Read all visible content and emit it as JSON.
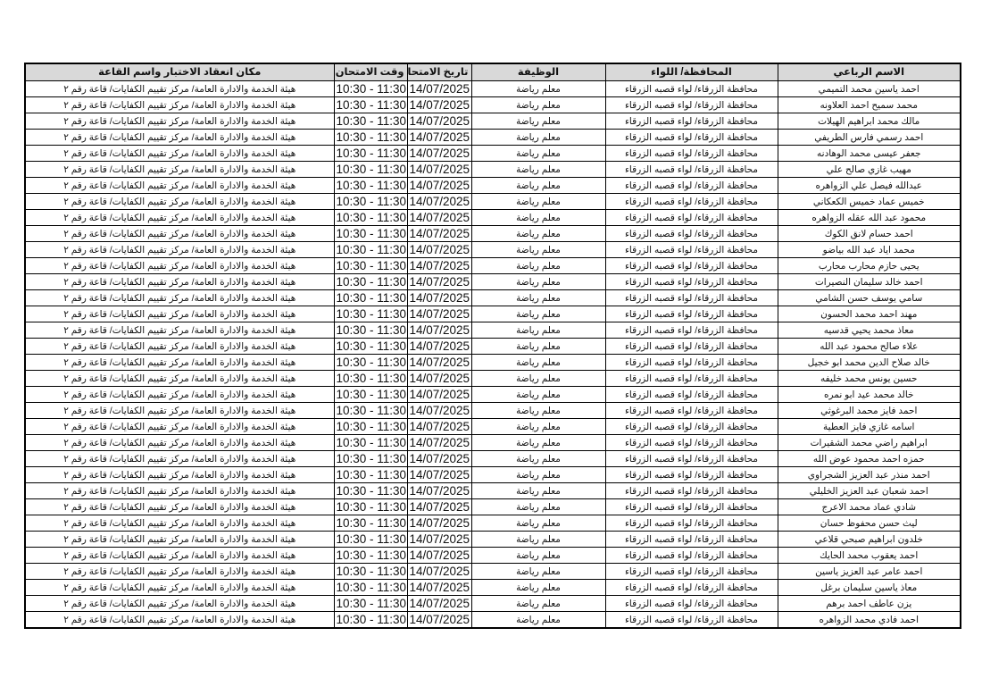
{
  "headers": [
    "الاسم الرباعي",
    "المحافظة/ اللواء",
    "الوظيفة",
    "تاريخ الامتحان",
    "وقت الامتحان",
    "مكان انعقاد الاختبار واسم القاعة"
  ],
  "rows": [
    [
      "احمد ياسين محمد التميمي",
      "محافظة الزرقاء/ لواء قصبه الزرقاء",
      "معلم رياضة",
      "14/07/2025",
      "10:30 - 11:30",
      "هيئة الخدمة والادارة العامة/ مركز تقييم الكفايات/ قاعة رقم ٢"
    ],
    [
      "محمد سميح احمد العلاونه",
      "محافظة الزرقاء/ لواء قصبه الزرقاء",
      "معلم رياضة",
      "14/07/2025",
      "10:30 - 11:30",
      "هيئة الخدمة والادارة العامة/ مركز تقييم الكفايات/ قاعة رقم ٢"
    ],
    [
      "مالك محمد ابراهيم الهيلات",
      "محافظة الزرقاء/ لواء قصبه الزرقاء",
      "معلم رياضة",
      "14/07/2025",
      "10:30 - 11:30",
      "هيئة الخدمة والادارة العامة/ مركز تقييم الكفايات/ قاعة رقم ٢"
    ],
    [
      "احمد رسمي فارس الطريفي",
      "محافظة الزرقاء/ لواء قصبه الزرقاء",
      "معلم رياضة",
      "14/07/2025",
      "10:30 - 11:30",
      "هيئة الخدمة والادارة العامة/ مركز تقييم الكفايات/ قاعة رقم ٢"
    ],
    [
      "جعفر عيسى محمد الوهادنه",
      "محافظة الزرقاء/ لواء قصبه الزرقاء",
      "معلم رياضة",
      "14/07/2025",
      "10:30 - 11:30",
      "هيئة الخدمة والادارة العامة/ مركز تقييم الكفايات/ قاعة رقم ٢"
    ],
    [
      "مهيب غازي صالح علي",
      "محافظة الزرقاء/ لواء قصبه الزرقاء",
      "معلم رياضة",
      "14/07/2025",
      "10:30 - 11:30",
      "هيئة الخدمة والادارة العامة/ مركز تقييم الكفايات/ قاعة رقم ٢"
    ],
    [
      "عبدالله فيصل علي الزواهره",
      "محافظة الزرقاء/ لواء قصبه الزرقاء",
      "معلم رياضة",
      "14/07/2025",
      "10:30 - 11:30",
      "هيئة الخدمة والادارة العامة/ مركز تقييم الكفايات/ قاعة رقم ٢"
    ],
    [
      "خميس عماد خميس الكعكاني",
      "محافظة الزرقاء/ لواء قصبه الزرقاء",
      "معلم رياضة",
      "14/07/2025",
      "10:30 - 11:30",
      "هيئة الخدمة والادارة العامة/ مركز تقييم الكفايات/ قاعة رقم ٢"
    ],
    [
      "محمود عبد الله عقله الزواهره",
      "محافظة الزرقاء/ لواء قصبه الزرقاء",
      "معلم رياضة",
      "14/07/2025",
      "10:30 - 11:30",
      "هيئة الخدمة والادارة العامة/ مركز تقييم الكفايات/ قاعة رقم ٢"
    ],
    [
      "احمد حسام لانق الكوك",
      "محافظة الزرقاء/ لواء قصبه الزرقاء",
      "معلم رياضة",
      "14/07/2025",
      "10:30 - 11:30",
      "هيئة الخدمة والادارة العامة/ مركز تقييم الكفايات/ قاعة رقم ٢"
    ],
    [
      "محمد اياد عبد الله بياضو",
      "محافظة الزرقاء/ لواء قصبه الزرقاء",
      "معلم رياضة",
      "14/07/2025",
      "10:30 - 11:30",
      "هيئة الخدمة والادارة العامة/ مركز تقييم الكفايات/ قاعة رقم ٢"
    ],
    [
      "يحيى حازم محارب محارب",
      "محافظة الزرقاء/ لواء قصبه الزرقاء",
      "معلم رياضة",
      "14/07/2025",
      "10:30 - 11:30",
      "هيئة الخدمة والادارة العامة/ مركز تقييم الكفايات/ قاعة رقم ٢"
    ],
    [
      "احمد خالد سليمان النصيرات",
      "محافظة الزرقاء/ لواء قصبه الزرقاء",
      "معلم رياضة",
      "14/07/2025",
      "10:30 - 11:30",
      "هيئة الخدمة والادارة العامة/ مركز تقييم الكفايات/ قاعة رقم ٢"
    ],
    [
      "سامي يوسف حسن الشامي",
      "محافظة الزرقاء/ لواء قصبه الزرقاء",
      "معلم رياضة",
      "14/07/2025",
      "10:30 - 11:30",
      "هيئة الخدمة والادارة العامة/ مركز تقييم الكفايات/ قاعة رقم ٢"
    ],
    [
      "مهند احمد محمد الحسون",
      "محافظة الزرقاء/ لواء قصبه الزرقاء",
      "معلم رياضة",
      "14/07/2025",
      "10:30 - 11:30",
      "هيئة الخدمة والادارة العامة/ مركز تقييم الكفايات/ قاعة رقم ٢"
    ],
    [
      "معاذ محمد يحيي قدسيه",
      "محافظة الزرقاء/ لواء قصبه الزرقاء",
      "معلم رياضة",
      "14/07/2025",
      "10:30 - 11:30",
      "هيئة الخدمة والادارة العامة/ مركز تقييم الكفايات/ قاعة رقم ٢"
    ],
    [
      "علاء صالح محمود عبد الله",
      "محافظة الزرقاء/ لواء قصبه الزرقاء",
      "معلم رياضة",
      "14/07/2025",
      "10:30 - 11:30",
      "هيئة الخدمة والادارة العامة/ مركز تقييم الكفايات/ قاعة رقم ٢"
    ],
    [
      "خالد صلاح الدين محمد ابو خجيل",
      "محافظة الزرقاء/ لواء قصبه الزرقاء",
      "معلم رياضة",
      "14/07/2025",
      "10:30 - 11:30",
      "هيئة الخدمة والادارة العامة/ مركز تقييم الكفايات/ قاعة رقم ٢"
    ],
    [
      "حسين يونس محمد خليفه",
      "محافظة الزرقاء/ لواء قصبه الزرقاء",
      "معلم رياضة",
      "14/07/2025",
      "10:30 - 11:30",
      "هيئة الخدمة والادارة العامة/ مركز تقييم الكفايات/ قاعة رقم ٢"
    ],
    [
      "خالد محمد عيد ابو نمره",
      "محافظة الزرقاء/ لواء قصبه الزرقاء",
      "معلم رياضة",
      "14/07/2025",
      "10:30 - 11:30",
      "هيئة الخدمة والادارة العامة/ مركز تقييم الكفايات/ قاعة رقم ٢"
    ],
    [
      "احمد فايز محمد البرغوثي",
      "محافظة الزرقاء/ لواء قصبه الزرقاء",
      "معلم رياضة",
      "14/07/2025",
      "10:30 - 11:30",
      "هيئة الخدمة والادارة العامة/ مركز تقييم الكفايات/ قاعة رقم ٢"
    ],
    [
      "اسامه غازي فايز العطية",
      "محافظة الزرقاء/ لواء قصبه الزرقاء",
      "معلم رياضة",
      "14/07/2025",
      "10:30 - 11:30",
      "هيئة الخدمة والادارة العامة/ مركز تقييم الكفايات/ قاعة رقم ٢"
    ],
    [
      "ابراهيم راضي محمد الشقيرات",
      "محافظة الزرقاء/ لواء قصبه الزرقاء",
      "معلم رياضة",
      "14/07/2025",
      "10:30 - 11:30",
      "هيئة الخدمة والادارة العامة/ مركز تقييم الكفايات/ قاعة رقم ٢"
    ],
    [
      "حمزه احمد محمود عوض الله",
      "محافظة الزرقاء/ لواء قصبه الزرقاء",
      "معلم رياضة",
      "14/07/2025",
      "10:30 - 11:30",
      "هيئة الخدمة والادارة العامة/ مركز تقييم الكفايات/ قاعة رقم ٢"
    ],
    [
      "احمد منذر عبد العزيز الشجراوي",
      "محافظة الزرقاء/ لواء قصبه الزرقاء",
      "معلم رياضة",
      "14/07/2025",
      "10:30 - 11:30",
      "هيئة الخدمة والادارة العامة/ مركز تقييم الكفايات/ قاعة رقم ٢"
    ],
    [
      "احمد شعبان عبد العزيز الخليلي",
      "محافظة الزرقاء/ لواء قصبه الزرقاء",
      "معلم رياضة",
      "14/07/2025",
      "10:30 - 11:30",
      "هيئة الخدمة والادارة العامة/ مركز تقييم الكفايات/ قاعة رقم ٢"
    ],
    [
      "شادي عماد محمد الاعرج",
      "محافظة الزرقاء/ لواء قصبه الزرقاء",
      "معلم رياضة",
      "14/07/2025",
      "10:30 - 11:30",
      "هيئة الخدمة والادارة العامة/ مركز تقييم الكفايات/ قاعة رقم ٢"
    ],
    [
      "ليث حسن محفوظ حسان",
      "محافظة الزرقاء/ لواء قصبه الزرقاء",
      "معلم رياضة",
      "14/07/2025",
      "10:30 - 11:30",
      "هيئة الخدمة والادارة العامة/ مركز تقييم الكفايات/ قاعة رقم ٢"
    ],
    [
      "خلدون ابراهيم صبحي قلاعي",
      "محافظة الزرقاء/ لواء قصبه الزرقاء",
      "معلم رياضة",
      "14/07/2025",
      "10:30 - 11:30",
      "هيئة الخدمة والادارة العامة/ مركز تقييم الكفايات/ قاعة رقم ٢"
    ],
    [
      "احمد يعقوب محمد الحايك",
      "محافظة الزرقاء/ لواء قصبه الزرقاء",
      "معلم رياضة",
      "14/07/2025",
      "10:30 - 11:30",
      "هيئة الخدمة والادارة العامة/ مركز تقييم الكفايات/ قاعة رقم ٢"
    ],
    [
      "احمد عامر عبد العزيز ياسين",
      "محافظة الزرقاء/ لواء قصبه الزرقاء",
      "معلم رياضة",
      "14/07/2025",
      "10:30 - 11:30",
      "هيئة الخدمة والادارة العامة/ مركز تقييم الكفايات/ قاعة رقم ٢"
    ],
    [
      "معاذ ياسين سليمان برغل",
      "محافظة الزرقاء/ لواء قصبه الزرقاء",
      "معلم رياضة",
      "14/07/2025",
      "10:30 - 11:30",
      "هيئة الخدمة والادارة العامة/ مركز تقييم الكفايات/ قاعة رقم ٢"
    ],
    [
      "يزن عاطف احمد برهم",
      "محافظة الزرقاء/ لواء قصبه الزرقاء",
      "معلم رياضة",
      "14/07/2025",
      "10:30 - 11:30",
      "هيئة الخدمة والادارة العامة/ مركز تقييم الكفايات/ قاعة رقم ٢"
    ],
    [
      "احمد فادي محمد الزواهره",
      "محافظة الزرقاء/ لواء قصبه الزرقاء",
      "معلم رياضة",
      "14/07/2025",
      "10:30 - 11:30",
      "هيئة الخدمة والادارة العامة/ مركز تقييم الكفايات/ قاعة رقم ٢"
    ]
  ]
}
